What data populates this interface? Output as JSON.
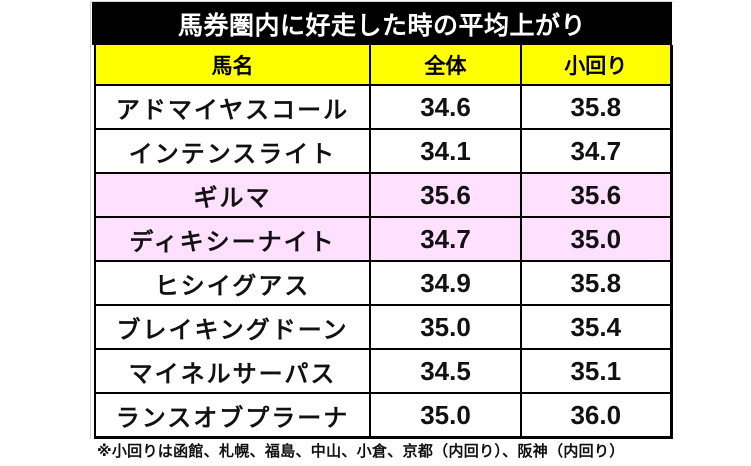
{
  "title": "馬券圏内に好走した時の平均上がり",
  "table": {
    "headers": [
      "馬名",
      "全体",
      "小回り"
    ],
    "rows": [
      {
        "name": "アドマイヤスコール",
        "overall": "34.6",
        "small_track": "35.8",
        "highlight": false
      },
      {
        "name": "インテンスライト",
        "overall": "34.1",
        "small_track": "34.7",
        "highlight": false
      },
      {
        "name": "ギルマ",
        "overall": "35.6",
        "small_track": "35.6",
        "highlight": true
      },
      {
        "name": "ディキシーナイト",
        "overall": "34.7",
        "small_track": "35.0",
        "highlight": true
      },
      {
        "name": "ヒシイグアス",
        "overall": "34.9",
        "small_track": "35.8",
        "highlight": false
      },
      {
        "name": "ブレイキングドーン",
        "overall": "35.0",
        "small_track": "35.4",
        "highlight": false
      },
      {
        "name": "マイネルサーパス",
        "overall": "34.5",
        "small_track": "35.1",
        "highlight": false
      },
      {
        "name": "ランスオブプラーナ",
        "overall": "35.0",
        "small_track": "36.0",
        "highlight": false
      }
    ]
  },
  "footnote": "※小回りは函館、札幌、福島、中山、小倉、京都（内回り）、阪神（内回り）",
  "colors": {
    "title_bg": "#000000",
    "title_text": "#ffffff",
    "header_bg": "#ffff00",
    "highlight_bg": "#ffe0ff",
    "row_bg": "#ffffff"
  }
}
